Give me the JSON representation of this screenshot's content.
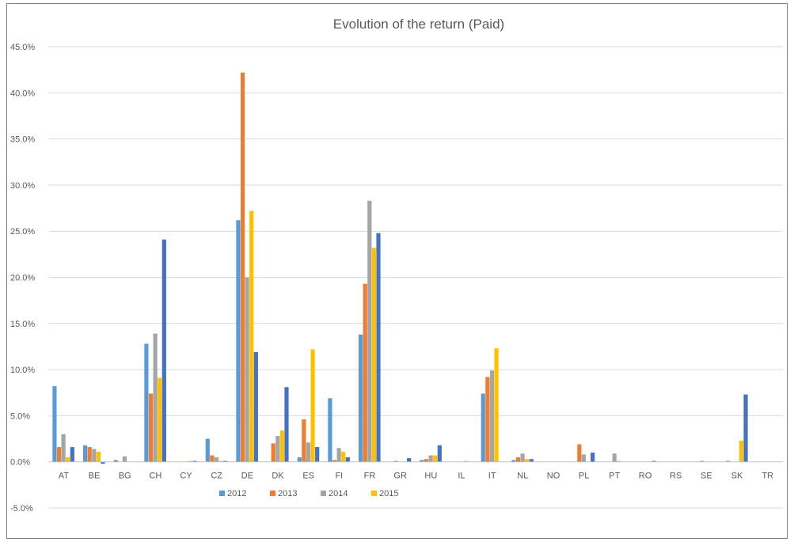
{
  "colors": {
    "2012": "#5b9bd5",
    "2013": "#ed7d31",
    "2014": "#a5a5a5",
    "2015": "#ffc000",
    "extra": "#4472c4",
    "grid": "#d9d9d9",
    "text": "#595959"
  },
  "chart_data": {
    "type": "bar",
    "title": "Evolution of the return (Paid)",
    "xlabel": "",
    "ylabel": "",
    "ylim": [
      -0.05,
      0.45
    ],
    "ytick_step": 0.05,
    "grid": true,
    "legend_position": "bottom",
    "y_tick_labels": [
      "45.0%",
      "40.0%",
      "35.0%",
      "30.0%",
      "25.0%",
      "20.0%",
      "15.0%",
      "10.0%",
      "5.0%",
      "0.0%",
      "-5.0%"
    ],
    "categories": [
      "AT",
      "BE",
      "BG",
      "CH",
      "CY",
      "CZ",
      "DE",
      "DK",
      "ES",
      "FI",
      "FR",
      "GR",
      "HU",
      "IL",
      "IT",
      "NL",
      "NO",
      "PL",
      "PT",
      "RO",
      "RS",
      "SE",
      "SK",
      "TR"
    ],
    "series": [
      {
        "name": "2012",
        "color_key": "2012",
        "values": [
          0.082,
          0.018,
          0.002,
          0.128,
          0.0,
          0.025,
          0.262,
          0.0,
          0.005,
          0.069,
          0.138,
          0.0,
          0.002,
          0.0,
          0.074,
          0.002,
          0.0,
          0.0,
          0.0,
          0.0,
          0.0,
          0.0,
          0.001,
          0.0
        ]
      },
      {
        "name": "2013",
        "color_key": "2013",
        "values": [
          0.016,
          0.016,
          0.0,
          0.074,
          0.0,
          0.007,
          0.422,
          0.02,
          0.046,
          0.002,
          0.193,
          0.001,
          0.003,
          0.0,
          0.092,
          0.005,
          0.0,
          0.019,
          0.0,
          0.0,
          0.0,
          0.001,
          0.0,
          0.0
        ]
      },
      {
        "name": "2014",
        "color_key": "2014",
        "values": [
          0.03,
          0.014,
          0.006,
          0.139,
          0.0,
          0.005,
          0.2,
          0.028,
          0.021,
          0.015,
          0.283,
          0.0,
          0.007,
          0.0,
          0.099,
          0.009,
          0.0,
          0.008,
          0.009,
          0.0,
          0.0,
          0.0,
          0.0,
          0.0
        ]
      },
      {
        "name": "2015",
        "color_key": "2015",
        "values": [
          0.005,
          0.011,
          0.0,
          0.091,
          0.001,
          0.001,
          0.272,
          0.034,
          0.122,
          0.011,
          0.232,
          0.0,
          0.007,
          0.001,
          0.123,
          0.003,
          0.0,
          0.0,
          0.001,
          0.0,
          0.0,
          0.0,
          0.023,
          0.0
        ]
      },
      {
        "color_key": "extra",
        "values": [
          0.016,
          -0.002,
          0.0,
          0.241,
          0.001,
          0.001,
          0.119,
          0.081,
          0.016,
          0.005,
          0.248,
          0.004,
          0.018,
          0.0,
          0.0,
          0.003,
          0.0,
          0.01,
          0.0,
          0.001,
          0.0,
          0.0,
          0.073,
          0.0
        ]
      }
    ]
  }
}
